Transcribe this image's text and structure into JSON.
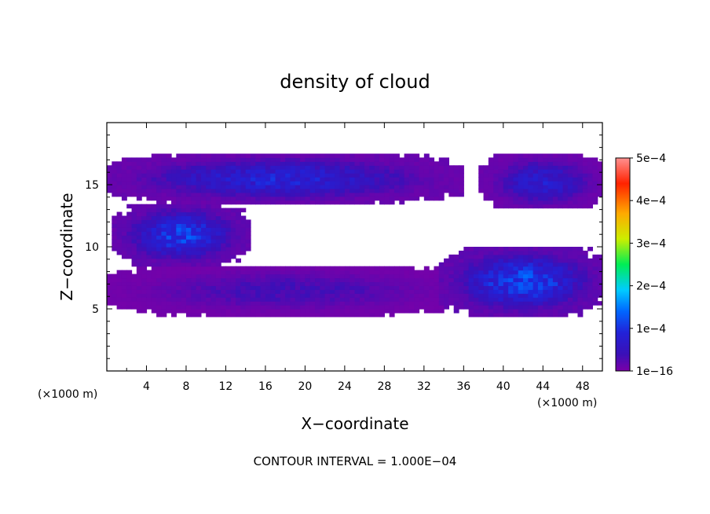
{
  "chart_data": {
    "type": "heatmap",
    "title": "density of cloud",
    "xlabel": "X−coordinate",
    "ylabel": "Z−coordinate",
    "x_unit": "(×1000 m)",
    "y_unit": "(×1000 m)",
    "xlim": [
      0,
      50
    ],
    "ylim": [
      0,
      20
    ],
    "x_ticks": [
      4,
      8,
      12,
      16,
      20,
      24,
      28,
      32,
      36,
      40,
      44,
      48
    ],
    "y_ticks": [
      5,
      10,
      15
    ],
    "colorbar": {
      "min": 1e-16,
      "max": 0.0005,
      "tick_labels": [
        "1e−16",
        "1e−4",
        "2e−4",
        "3e−4",
        "4e−4",
        "5e−4"
      ],
      "tick_values": [
        0,
        0.0001,
        0.0002,
        0.0003,
        0.0004,
        0.0005
      ],
      "colors": [
        "#7a00a8",
        "#2222c8",
        "#0044ff",
        "#00c8ff",
        "#00ee44",
        "#ccee00",
        "#ffaa00",
        "#ff2200",
        "#ff8080"
      ]
    },
    "contour_interval_text": "CONTOUR INTERVAL = 1.000E−04",
    "regions": [
      {
        "name": "upper band",
        "x": [
          0,
          35
        ],
        "z": [
          13.5,
          17.5
        ],
        "peak": 9e-05
      },
      {
        "name": "upper right band",
        "x": [
          38,
          50
        ],
        "z": [
          13,
          17.5
        ],
        "peak": 8e-05
      },
      {
        "name": "mid left patch",
        "x": [
          1,
          14
        ],
        "z": [
          8.5,
          13.5
        ],
        "peak": 0.00012
      },
      {
        "name": "lower band",
        "x": [
          0,
          36
        ],
        "z": [
          4.5,
          8.5
        ],
        "peak": 4e-05
      },
      {
        "name": "lower right patch",
        "x": [
          34,
          50
        ],
        "z": [
          4.5,
          10
        ],
        "peak": 0.00013
      }
    ]
  }
}
